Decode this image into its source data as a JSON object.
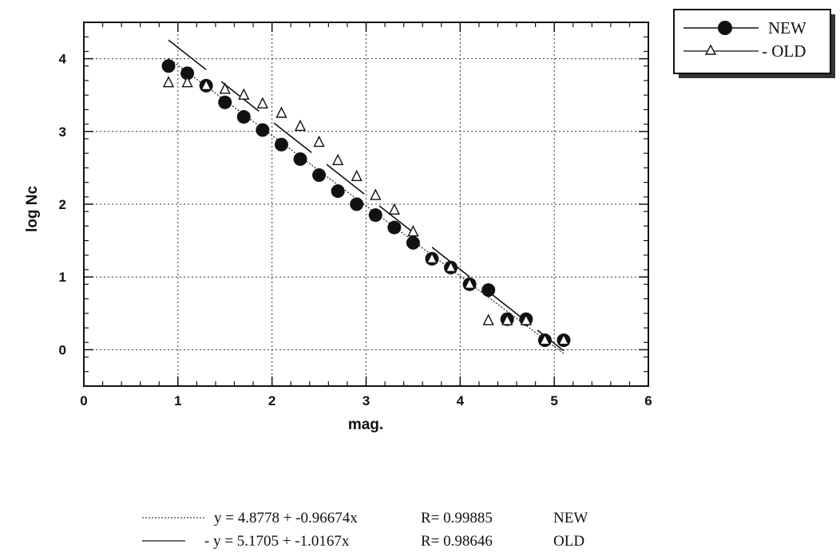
{
  "chart_data": {
    "type": "scatter",
    "title": "",
    "xlabel": "mag.",
    "ylabel": "log Nc",
    "xlim": [
      0,
      6
    ],
    "ylim": [
      -0.5,
      4.5
    ],
    "x_ticks": [
      "0",
      "1",
      "2",
      "3",
      "4",
      "5",
      "6"
    ],
    "y_ticks": [
      "0",
      "1",
      "2",
      "3",
      "4"
    ],
    "grid": true,
    "legend_position": "top-right, outside plot",
    "series": [
      {
        "name": "NEW",
        "marker": "filled-circle",
        "color": "#111111",
        "x": [
          0.9,
          1.1,
          1.3,
          1.5,
          1.7,
          1.9,
          2.1,
          2.3,
          2.5,
          2.7,
          2.9,
          3.1,
          3.3,
          3.5,
          3.7,
          3.9,
          4.1,
          4.3,
          4.5,
          4.7,
          4.9,
          5.1
        ],
        "y": [
          3.9,
          3.8,
          3.63,
          3.4,
          3.2,
          3.02,
          2.82,
          2.62,
          2.4,
          2.18,
          2.0,
          1.85,
          1.68,
          1.47,
          1.25,
          1.13,
          0.9,
          0.82,
          0.42,
          0.42,
          0.13,
          0.13
        ]
      },
      {
        "name": "- OLD",
        "marker": "open-triangle",
        "color": "#111111",
        "x": [
          0.9,
          1.1,
          1.3,
          1.5,
          1.7,
          1.9,
          2.1,
          2.3,
          2.5,
          2.7,
          2.9,
          3.1,
          3.3,
          3.5,
          3.7,
          3.9,
          4.1,
          4.3,
          4.5,
          4.7,
          4.9,
          5.1
        ],
        "y": [
          3.67,
          3.67,
          3.63,
          3.58,
          3.5,
          3.38,
          3.25,
          3.07,
          2.85,
          2.6,
          2.38,
          2.12,
          1.92,
          1.62,
          1.25,
          1.13,
          0.9,
          0.4,
          0.4,
          0.4,
          0.13,
          0.13
        ]
      }
    ],
    "fits": [
      {
        "series": "NEW",
        "style": "dotted",
        "intercept": 4.8778,
        "slope": -0.96674,
        "x_range": [
          0.9,
          5.1
        ],
        "equation_label": "y = 4.8778 + -0.96674x",
        "r_label": "R= 0.99885",
        "name_label": "NEW"
      },
      {
        "series": "OLD",
        "style": "dashed",
        "intercept": 5.1705,
        "slope": -1.0167,
        "x_range": [
          0.9,
          5.1
        ],
        "equation_label": "- y = 5.1705 + -1.0167x",
        "r_label": "R= 0.98646",
        "name_label": "OLD"
      }
    ]
  }
}
